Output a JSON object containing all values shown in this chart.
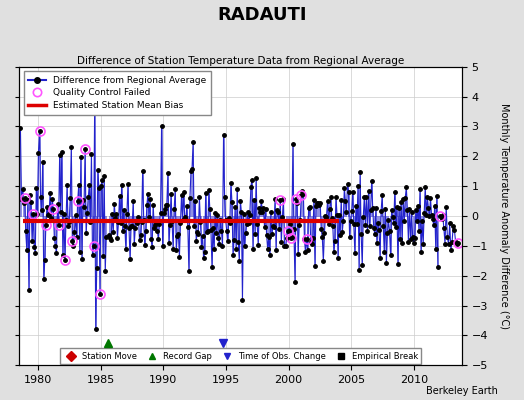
{
  "title": "RADAUTI",
  "subtitle": "Difference of Station Temperature Data from Regional Average",
  "ylabel": "Monthly Temperature Anomaly Difference (°C)",
  "credit": "Berkeley Earth",
  "ylim": [
    -5,
    5
  ],
  "xlim": [
    1978.5,
    2013.8
  ],
  "xticks": [
    1980,
    1985,
    1990,
    1995,
    2000,
    2005,
    2010
  ],
  "yticks": [
    -5,
    -4,
    -3,
    -2,
    -1,
    0,
    1,
    2,
    3,
    4,
    5
  ],
  "bias_line_y": -0.15,
  "bias_line_xstart": 1978.8,
  "bias_line_xend": 2004.0,
  "background_color": "#e0e0e0",
  "plot_bg_color": "#ffffff",
  "line_color": "#2222cc",
  "bias_color": "#dd0000",
  "qc_color": "#ff55ff",
  "record_gap_color": "#007700",
  "obs_change_color": "#2222cc",
  "record_gap_x": 1985.58,
  "record_gap_y": -4.25,
  "obs_change_x": 1994.75,
  "obs_change_y": -4.25,
  "grid_color": "#cccccc",
  "seg1_end_year": 1985.5,
  "seg2_start_year": 1985.67,
  "seg2_end_year": 2012.0,
  "seg3_start_year": 2012.1,
  "seg3_end_year": 2013.5
}
